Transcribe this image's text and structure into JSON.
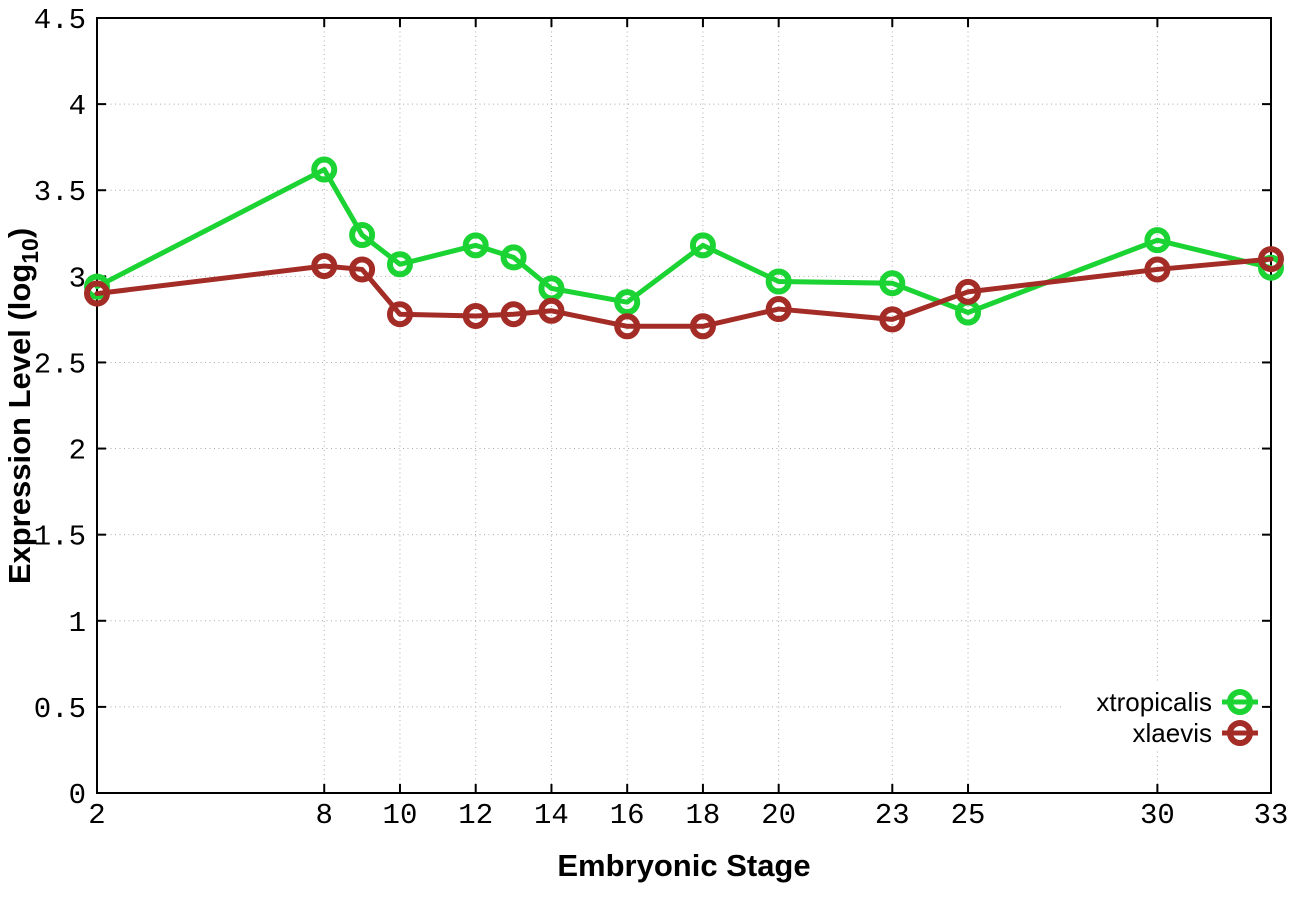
{
  "colors": {
    "background": "#ffffff",
    "axis": "#000000",
    "grid": "#aaaaaa",
    "text": "#000000",
    "series_green": "#1bd434",
    "series_darkred": "#a42c26"
  },
  "chart_data": {
    "type": "line",
    "title": "",
    "xlabel": "Embryonic Stage",
    "ylabel": {
      "main": "Expression Level (log",
      "sub": "10",
      "close": ")"
    },
    "xlim": [
      2,
      33
    ],
    "ylim": [
      0,
      4.5
    ],
    "ytick_step": 0.5,
    "ytick_labels": [
      "0",
      "0.5",
      "1",
      "1.5",
      "2",
      "2.5",
      "3",
      "3.5",
      "4",
      "4.5"
    ],
    "xtick_labels": [
      "2",
      "8",
      "10",
      "12",
      "14",
      "16",
      "18",
      "20",
      "23",
      "25",
      "30",
      "33"
    ],
    "xticks": [
      2,
      8,
      10,
      12,
      14,
      16,
      18,
      20,
      23,
      25,
      30,
      33
    ],
    "grid": true,
    "legend_position": "inside-bottom-right",
    "x": [
      2,
      8,
      9,
      10,
      12,
      13,
      14,
      16,
      18,
      20,
      23,
      25,
      30,
      33
    ],
    "series": [
      {
        "name": "xtropicalis",
        "color": "#1bd434",
        "marker": "open-circle",
        "values": [
          2.94,
          3.62,
          3.24,
          3.07,
          3.18,
          3.11,
          2.93,
          2.85,
          3.18,
          2.97,
          2.96,
          2.79,
          3.21,
          3.05
        ]
      },
      {
        "name": "xlaevis",
        "color": "#a42c26",
        "marker": "open-circle",
        "values": [
          2.9,
          3.06,
          3.04,
          2.78,
          2.77,
          2.78,
          2.8,
          2.71,
          2.71,
          2.81,
          2.75,
          2.91,
          3.04,
          3.1
        ]
      }
    ]
  }
}
